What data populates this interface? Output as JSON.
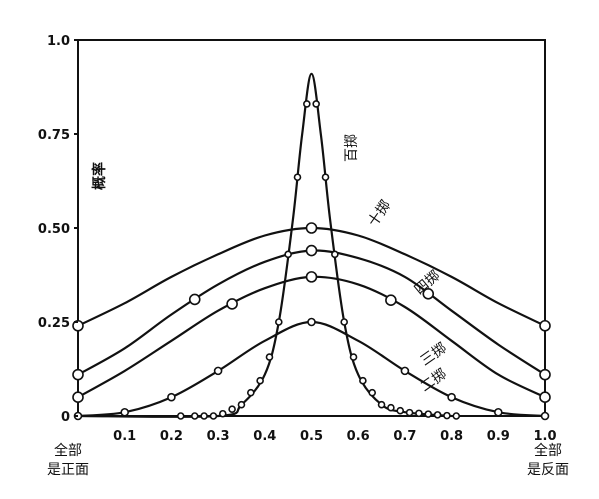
{
  "chart_data": {
    "type": "line",
    "ylabel": "概率",
    "xlim": [
      0,
      1
    ],
    "ylim": [
      0,
      1
    ],
    "x_ticks": [
      "0.1",
      "0.2",
      "0.3",
      "0.4",
      "0.5",
      "0.6",
      "0.7",
      "0.8",
      "0.9",
      "1.0"
    ],
    "y_ticks": [
      "0",
      "0.25",
      "0.50",
      "0.75",
      "1.0"
    ],
    "x_end_labels": {
      "left": [
        "全部",
        "是正面"
      ],
      "right": [
        "全部",
        "是反面"
      ]
    },
    "grid": false,
    "series": [
      {
        "name": "十掷",
        "label_side": "top-right",
        "x": [
          0,
          0.1,
          0.2,
          0.3,
          0.4,
          0.5,
          0.6,
          0.7,
          0.8,
          0.9,
          1.0
        ],
        "y": [
          0.24,
          0.3,
          0.37,
          0.43,
          0.48,
          0.5,
          0.48,
          0.43,
          0.37,
          0.3,
          0.24
        ],
        "markers_x": [
          0,
          0.5,
          1.0
        ],
        "marker": "large"
      },
      {
        "name": "四掷",
        "x": [
          0,
          0.1,
          0.2,
          0.3,
          0.4,
          0.5,
          0.6,
          0.7,
          0.8,
          0.9,
          1.0
        ],
        "y": [
          0.11,
          0.18,
          0.27,
          0.35,
          0.41,
          0.44,
          0.42,
          0.37,
          0.28,
          0.19,
          0.11
        ],
        "markers_x": [
          0,
          0.25,
          0.5,
          0.75,
          1.0
        ],
        "marker": "large"
      },
      {
        "name": "三掷",
        "x": [
          0,
          0.1,
          0.2,
          0.3,
          0.4,
          0.5,
          0.6,
          0.7,
          0.8,
          0.9,
          1.0
        ],
        "y": [
          0.05,
          0.12,
          0.2,
          0.28,
          0.34,
          0.37,
          0.35,
          0.29,
          0.2,
          0.11,
          0.05
        ],
        "markers_x": [
          0,
          0.33,
          0.5,
          0.67,
          1.0
        ],
        "marker": "large"
      },
      {
        "name": "二掷",
        "x": [
          0,
          0.1,
          0.2,
          0.3,
          0.4,
          0.5,
          0.6,
          0.7,
          0.8,
          0.9,
          1.0
        ],
        "y": [
          0,
          0.01,
          0.05,
          0.12,
          0.2,
          0.25,
          0.2,
          0.12,
          0.05,
          0.01,
          0
        ],
        "markers_x": [
          0,
          0.1,
          0.2,
          0.3,
          0.5,
          0.7,
          0.8,
          0.9,
          1.0
        ],
        "marker": "small"
      },
      {
        "name": "百掷",
        "x": [
          0,
          0.3,
          0.35,
          0.4,
          0.43,
          0.46,
          0.48,
          0.5,
          0.52,
          0.54,
          0.57,
          0.6,
          0.65,
          0.7,
          0.8
        ],
        "y": [
          0,
          0,
          0.03,
          0.11,
          0.25,
          0.52,
          0.75,
          0.91,
          0.75,
          0.52,
          0.25,
          0.11,
          0.03,
          0.01,
          0
        ],
        "markers_x": [
          0.22,
          0.25,
          0.27,
          0.29,
          0.31,
          0.33,
          0.35,
          0.37,
          0.39,
          0.41,
          0.43,
          0.45,
          0.47,
          0.49,
          0.51,
          0.53,
          0.55,
          0.57,
          0.59,
          0.61,
          0.63,
          0.65,
          0.67,
          0.69,
          0.71,
          0.73,
          0.75,
          0.77,
          0.79,
          0.81
        ],
        "marker": "dense"
      }
    ]
  }
}
